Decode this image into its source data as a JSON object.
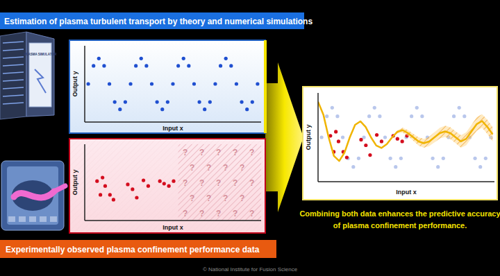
{
  "icons": {
    "simulator_label": "PLASMA SIMULATOR"
  },
  "copyright": "© National Institute for Fusion Science",
  "chart_data": [
    {
      "type": "scatter",
      "title": "Estimation of plasma turbulent transport by theory and numerical simulations",
      "x_label": "Input x",
      "y_label": "Output y",
      "xlim": [
        0,
        10
      ],
      "ylim": [
        -1.5,
        1.5
      ],
      "grid": false,
      "tick_labels": false,
      "series": [
        {
          "color": "#1f4fd0",
          "marker": "circle",
          "x": [
            0.2,
            0.5,
            0.8,
            1.1,
            1.4,
            1.7,
            2.0,
            2.3,
            2.6,
            2.9,
            3.2,
            3.5,
            3.8,
            4.1,
            4.4,
            4.7,
            5.0,
            5.3,
            5.6,
            5.9,
            6.2,
            6.5,
            6.8,
            7.1,
            7.4,
            7.7,
            8.0,
            8.3,
            8.6,
            8.9,
            9.2,
            9.5,
            9.8
          ],
          "values": [
            0,
            0.71,
            1,
            0.71,
            0,
            -0.71,
            -1,
            -0.71,
            0,
            0.71,
            1,
            0.71,
            0,
            -0.71,
            -1,
            -0.71,
            0,
            0.71,
            1,
            0.71,
            0,
            -0.71,
            -1,
            -0.71,
            0,
            0.71,
            1,
            0.71,
            0,
            -0.71,
            -1,
            -0.71,
            0
          ]
        }
      ]
    },
    {
      "type": "scatter",
      "title": "Experimentally observed plasma confinement performance data",
      "x_label": "Input x",
      "y_label": "Output y",
      "xlim": [
        0,
        10
      ],
      "ylim": [
        -1.5,
        1.5
      ],
      "grid": false,
      "tick_labels": false,
      "unknown_xlim": [
        5.3,
        10
      ],
      "unknown_label": "?",
      "series": [
        {
          "color": "#d40d1e",
          "marker": "circle",
          "x": [
            0.7,
            1.01,
            1.16,
            0.89,
            1.43,
            1.63,
            2.44,
            2.71,
            2.95,
            3.33,
            3.6,
            4.26,
            4.5,
            4.77,
            5.04
          ],
          "values": [
            0.05,
            0.19,
            -0.14,
            -0.49,
            -0.49,
            -0.68,
            -0.08,
            -0.27,
            -0.6,
            0.08,
            -0.14,
            0.05,
            -0.05,
            -0.14,
            0.05
          ]
        }
      ]
    },
    {
      "type": "line",
      "annotations": [
        "Combining both data enhances the predictive accuracy",
        "of plasma confinement performance."
      ],
      "x_label": "Input x",
      "y_label": "Output y",
      "xlim": [
        0,
        10
      ],
      "ylim": [
        -1.5,
        1.5
      ],
      "grid": false,
      "tick_labels": false,
      "series": [
        {
          "type": "scatter",
          "color": "#b9c7ec",
          "marker": "circle",
          "x": [
            0.2,
            0.5,
            0.8,
            1.1,
            1.4,
            1.7,
            2.0,
            2.3,
            2.6,
            2.9,
            3.2,
            3.5,
            3.8,
            4.1,
            4.4,
            4.7,
            5.0,
            5.3,
            5.6,
            5.9,
            6.2,
            6.5,
            6.8,
            7.1,
            7.4,
            7.7,
            8.0,
            8.3,
            8.6,
            8.9,
            9.2,
            9.5,
            9.8
          ],
          "values": [
            0,
            0.71,
            1,
            0.71,
            0,
            -0.71,
            -1,
            -0.71,
            0,
            0.71,
            1,
            0.71,
            0,
            -0.71,
            -1,
            -0.71,
            0,
            0.71,
            1,
            0.71,
            0,
            -0.71,
            -1,
            -0.71,
            0,
            0.71,
            1,
            0.71,
            0,
            -0.71,
            -1,
            -0.71,
            0
          ]
        },
        {
          "type": "scatter",
          "color": "#d40d1e",
          "marker": "circle",
          "x": [
            0.7,
            1.01,
            1.16,
            0.89,
            1.43,
            1.63,
            2.44,
            2.71,
            2.95,
            3.33,
            3.6,
            4.26,
            4.5,
            4.77,
            5.04
          ],
          "values": [
            0.05,
            0.19,
            -0.14,
            -0.49,
            -0.49,
            -0.68,
            -0.08,
            -0.27,
            -0.6,
            0.08,
            -0.14,
            0.05,
            -0.05,
            -0.14,
            0.05
          ]
        },
        {
          "type": "line",
          "color": "#f0b400",
          "line_style": "solid",
          "x": [
            0,
            0.3,
            0.6,
            0.9,
            1.2,
            1.5,
            1.8,
            2.1,
            2.4,
            2.7,
            3.0,
            3.3,
            3.6,
            3.9,
            4.2,
            4.5,
            4.8,
            5.1,
            5.4,
            5.7,
            6.0,
            6.3,
            6.6,
            6.9,
            7.2,
            7.5,
            7.8,
            8.1,
            8.4,
            8.7,
            9.0,
            9.3,
            9.6,
            9.9
          ],
          "values": [
            1.2,
            0.77,
            0,
            -0.63,
            -0.8,
            -0.52,
            0,
            0.42,
            0.54,
            0.35,
            0,
            -0.28,
            -0.36,
            -0.23,
            0,
            0.19,
            0.24,
            0.14,
            0,
            -0.14,
            -0.2,
            -0.14,
            0,
            0.14,
            0.2,
            0.14,
            0,
            -0.14,
            -0.05,
            0.2,
            0.45,
            0.55,
            0.35,
            0.1
          ],
          "uncertainty": [
            0.02,
            0.02,
            0.02,
            0.02,
            0.02,
            0.02,
            0.02,
            0.02,
            0.02,
            0.02,
            0.02,
            0.02,
            0.02,
            0.02,
            0.02,
            0.05,
            0.08,
            0.1,
            0.12,
            0.14,
            0.15,
            0.16,
            0.17,
            0.18,
            0.19,
            0.2,
            0.2,
            0.21,
            0.22,
            0.22,
            0.23,
            0.23,
            0.24,
            0.24
          ]
        }
      ]
    }
  ]
}
